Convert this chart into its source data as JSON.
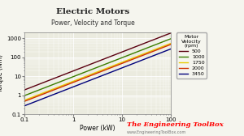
{
  "title": "Electric Motors",
  "subtitle": "Power, Velocity and Torque",
  "xlabel": "Power (kW)",
  "ylabel": "Torque (Nm)",
  "legend_title": "Motor\nVelocity\n(rpm)",
  "watermark": "The Engineering ToolBox",
  "watermark_url": "www.EngineeringToolBox.com",
  "rpm_series": [
    500,
    1000,
    1750,
    2000,
    3450
  ],
  "rpm_colors": [
    "#5a0010",
    "#3a7d00",
    "#e8cc00",
    "#d03000",
    "#00007a"
  ],
  "power_range": [
    0.1,
    100
  ],
  "xlim": [
    0.1,
    100
  ],
  "ylim": [
    0.1,
    2000
  ],
  "background_color": "#f5f5ee",
  "plot_bg_color": "#ebebdf",
  "grid_color": "#ffffff"
}
